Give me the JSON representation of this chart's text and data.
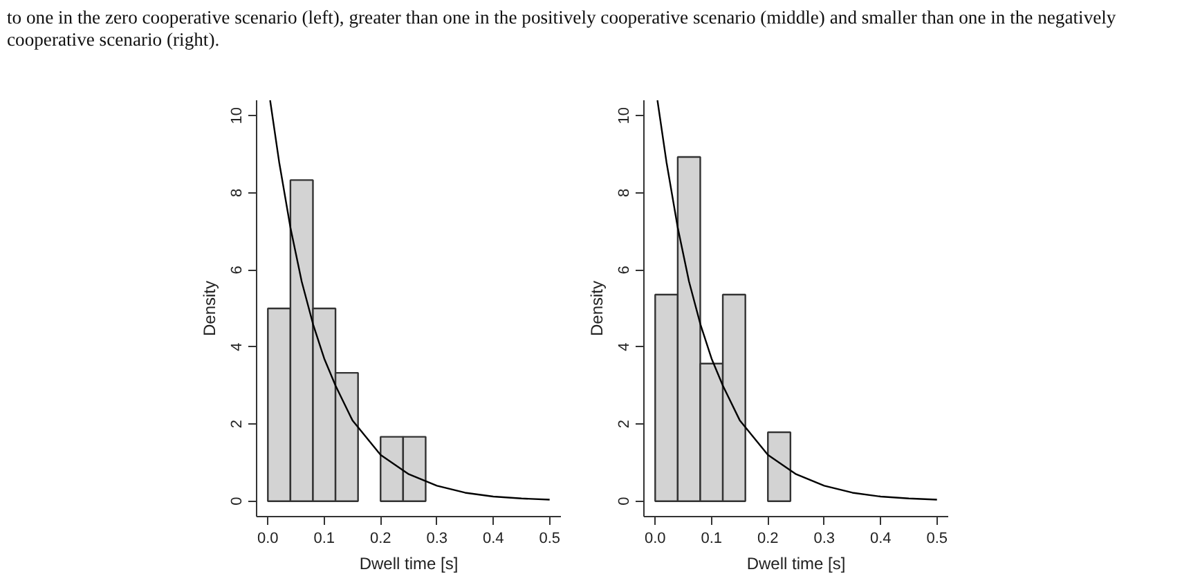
{
  "chart_data": [
    {
      "type": "histogram",
      "xlabel": "Dwell time [s]",
      "ylabel": "Density",
      "annotations": [
        "to one in the zero cooperative scenario (left), greater than one in the positively cooperative scenario (middle) and smaller than one in the negatively cooperative scenario (right)."
      ],
      "bins": [
        0.0,
        0.04,
        0.08,
        0.12,
        0.16,
        0.2,
        0.24,
        0.28
      ],
      "values": [
        5.0,
        8.33,
        5.0,
        3.33,
        0,
        1.67,
        1.67
      ],
      "color": "#d3d3d3",
      "xticks": [
        {
          "value": 0,
          "label": "0.0"
        },
        0.1,
        0.2,
        0.3,
        0.4,
        0.5
      ],
      "series": [
        {
          "type": "line",
          "color": "#000000",
          "x": [
            0.004,
            0.02,
            0.04,
            0.06,
            0.08,
            0.1,
            0.12,
            0.15,
            0.2,
            0.25,
            0.3,
            0.35,
            0.4,
            0.45,
            0.5
          ],
          "values": [
            10.4,
            8.8,
            7.1,
            5.7,
            4.6,
            3.7,
            3.0,
            2.1,
            1.2,
            0.7,
            0.4,
            0.22,
            0.12,
            0.07,
            0.04
          ]
        }
      ],
      "xlim": [
        -0.02,
        0.52
      ],
      "ylim": [
        -0.4,
        10.4
      ],
      "yticks": [
        0,
        2,
        4,
        6,
        8,
        10
      ],
      "grid": false
    },
    {
      "type": "histogram",
      "xlabel": "Dwell time [s]",
      "ylabel": "Density",
      "bins": [
        0.0,
        0.04,
        0.08,
        0.12,
        0.16,
        0.2,
        0.24
      ],
      "values": [
        5.36,
        8.93,
        3.57,
        5.36,
        0,
        1.79
      ],
      "color": "#d3d3d3",
      "xticks": [
        {
          "value": 0,
          "label": "0.0"
        },
        0.1,
        0.2,
        0.3,
        0.4,
        0.5
      ],
      "series": [
        {
          "type": "line",
          "color": "#000000",
          "x": [
            0.004,
            0.02,
            0.04,
            0.06,
            0.08,
            0.1,
            0.12,
            0.15,
            0.2,
            0.25,
            0.3,
            0.35,
            0.4,
            0.45,
            0.5
          ],
          "values": [
            10.4,
            8.8,
            7.1,
            5.7,
            4.6,
            3.7,
            3.0,
            2.1,
            1.2,
            0.7,
            0.4,
            0.22,
            0.12,
            0.07,
            0.04
          ]
        }
      ],
      "xlim": [
        -0.02,
        0.52
      ],
      "ylim": [
        -0.4,
        10.4
      ],
      "yticks": [
        0,
        2,
        4,
        6,
        8,
        10
      ],
      "grid": false
    }
  ]
}
